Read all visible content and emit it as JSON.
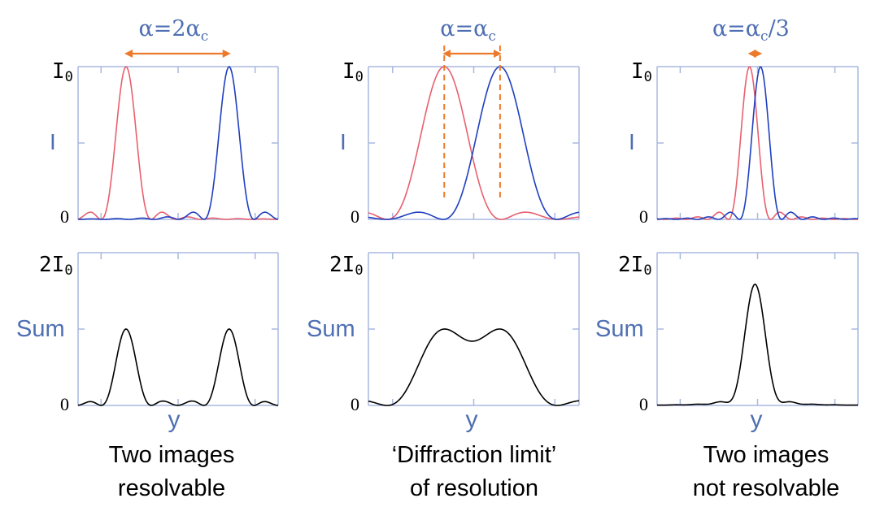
{
  "colors": {
    "axis": "#a8b8e0",
    "label_blue": "#4f6fb3",
    "pattern_red": "#e8606e",
    "pattern_blue": "#1f3fbf",
    "sum": "#000000",
    "arrow": "#ec7a2a"
  },
  "axis_labels": {
    "top_max": "I",
    "top_max_sub": "0",
    "top_mid": "I",
    "bottom_max": "2I",
    "bottom_max_sub": "0",
    "bottom_mid": "Sum",
    "zero": "0",
    "x": "y"
  },
  "panels": [
    {
      "separation": {
        "lhs": "α=2α",
        "sub": "c",
        "tail": ""
      },
      "caption": [
        "Two images",
        "resolvable"
      ],
      "show_dashed": false
    },
    {
      "separation": {
        "lhs": "α=α",
        "sub": "c",
        "tail": ""
      },
      "caption": [
        "‘Diffraction limit’",
        "of resolution"
      ],
      "show_dashed": true
    },
    {
      "separation": {
        "lhs": "α=α",
        "sub": "c",
        "tail": "/3"
      },
      "caption": [
        "Two images",
        "not resolvable"
      ],
      "show_dashed": false
    }
  ],
  "chart_data": [
    {
      "type": "line",
      "title": "α=2αc",
      "xlabel": "y",
      "ylabel": "I",
      "ylim": [
        0,
        1
      ],
      "series": [
        {
          "x": [
            -0.6,
            0.2,
            0.6,
            1.0,
            1.2,
            1.4,
            1.6,
            1.8,
            2.0,
            2.2,
            2.4,
            2.6,
            2.8,
            3.0,
            3.4
          ],
          "values": [
            0.02,
            0.05,
            0.3,
            0.75,
            0.93,
            1.0,
            0.93,
            0.75,
            0.5,
            0.25,
            0.06,
            0.0,
            0.04,
            0.02,
            0.01
          ]
        },
        {
          "x": [
            -0.6,
            0.2,
            0.6,
            1.0,
            1.4,
            1.8,
            2.0,
            2.2,
            2.6,
            3.0,
            3.4
          ],
          "values": [
            0.01,
            0.0,
            0.04,
            0.01,
            0.02,
            0.3,
            0.6,
            0.9,
            1.0,
            0.5,
            0.0
          ]
        }
      ]
    },
    {
      "type": "line",
      "title": "α=αc",
      "xlabel": "y",
      "ylabel": "I",
      "ylim": [
        0,
        1
      ],
      "series": [
        {
          "name": "red pattern",
          "x": [
            -1.5,
            -1.0,
            -0.5,
            0,
            0.5,
            1.0,
            1.5
          ],
          "values": [
            0.03,
            0.0,
            0.4,
            1.0,
            0.4,
            0.0,
            0.03
          ]
        },
        {
          "name": "blue pattern",
          "x": [
            -0.5,
            0,
            0.5,
            1.0,
            1.5,
            2.0,
            2.5
          ],
          "values": [
            0.03,
            0.0,
            0.4,
            1.0,
            0.4,
            0.0,
            0.03
          ]
        }
      ]
    },
    {
      "type": "line",
      "title": "α=αc/3",
      "xlabel": "y",
      "ylabel": "I",
      "ylim": [
        0,
        1
      ],
      "series": [
        {
          "x": [
            -1.6,
            -1.0,
            -0.5,
            -0.1,
            0.3,
            0.7,
            1.2,
            1.8
          ],
          "values": [
            0.03,
            0.0,
            0.4,
            1.0,
            0.4,
            0.0,
            0.03,
            0.0
          ]
        },
        {
          "x": [
            -1.2,
            -0.6,
            -0.1,
            0.3,
            0.7,
            1.1,
            1.6,
            2.2
          ],
          "values": [
            0.03,
            0.0,
            0.4,
            1.0,
            0.4,
            0.0,
            0.03,
            0.0
          ]
        }
      ]
    },
    {
      "type": "line",
      "title": "Sum",
      "xlabel": "y",
      "ylabel": "Sum",
      "ylim": [
        0,
        2
      ],
      "series": [
        {
          "x": [
            -2.5,
            -2.0,
            -1.5,
            -1.0,
            -0.5,
            0,
            0.5,
            1.0,
            1.5,
            2.0,
            2.5
          ],
          "values": [
            0.0,
            0.3,
            1.0,
            0.6,
            0.1,
            0.0,
            0.1,
            0.6,
            1.0,
            0.3,
            0.0
          ]
        }
      ]
    },
    {
      "type": "line",
      "title": "Sum",
      "xlabel": "y",
      "ylabel": "Sum",
      "ylim": [
        0,
        2
      ],
      "series": [
        {
          "x": [
            -2.5,
            -2.0,
            -1.5,
            -1.0,
            -0.5,
            0,
            0.5,
            1.0,
            1.5,
            2.0,
            2.5
          ],
          "values": [
            0.05,
            0.0,
            0.05,
            0.55,
            1.0,
            0.82,
            1.0,
            0.55,
            0.05,
            0.0,
            0.05
          ]
        }
      ]
    },
    {
      "type": "line",
      "title": "Sum",
      "xlabel": "y",
      "ylabel": "Sum",
      "ylim": [
        0,
        2
      ],
      "series": [
        {
          "x": [
            -2.5,
            -2.0,
            -1.5,
            -1.0,
            -0.5,
            0,
            0.5,
            1.0,
            1.5,
            2.0,
            2.5
          ],
          "values": [
            0.0,
            0.05,
            0.05,
            0.2,
            1.0,
            1.85,
            1.0,
            0.2,
            0.05,
            0.05,
            0.0
          ]
        }
      ]
    }
  ]
}
